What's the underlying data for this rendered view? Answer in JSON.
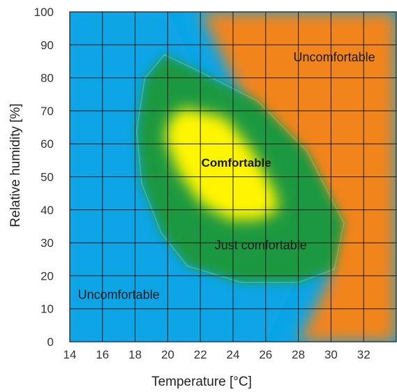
{
  "chart_data": {
    "type": "heatmap",
    "title": "",
    "xlabel": "Temperature [°C]",
    "ylabel": "Relative humidity [%]",
    "xlim": [
      14,
      34
    ],
    "ylim": [
      0,
      100
    ],
    "x_ticks": [
      14,
      16,
      18,
      20,
      22,
      24,
      26,
      28,
      30,
      32
    ],
    "y_ticks": [
      0,
      10,
      20,
      30,
      40,
      50,
      60,
      70,
      80,
      90,
      100
    ],
    "grid": true,
    "zones": [
      {
        "label": "Uncomfortable",
        "region": "cold",
        "color": "#0aa5e6",
        "boundary": [
          [
            14,
            0
          ],
          [
            26,
            0
          ],
          [
            28,
            20
          ],
          [
            20,
            100
          ],
          [
            14,
            100
          ]
        ]
      },
      {
        "label": "Uncomfortable",
        "region": "hot",
        "color": "#f2841e",
        "boundary": [
          [
            28,
            0
          ],
          [
            34,
            0
          ],
          [
            34,
            100
          ],
          [
            22,
            100
          ],
          [
            30,
            20
          ]
        ]
      },
      {
        "label": "Just comfortable",
        "color": "#1a9940",
        "boundary": [
          [
            19.8,
            87
          ],
          [
            21.5,
            83
          ],
          [
            25.5,
            73
          ],
          [
            28.5,
            58
          ],
          [
            30.8,
            36
          ],
          [
            30.2,
            22
          ],
          [
            28,
            18
          ],
          [
            24.5,
            18
          ],
          [
            21.2,
            23
          ],
          [
            19.6,
            33
          ],
          [
            18.4,
            48
          ],
          [
            18.1,
            64
          ],
          [
            18.6,
            80
          ]
        ]
      },
      {
        "label": "Comfortable",
        "color": "#fff500",
        "boundary": [
          [
            20.2,
            68
          ],
          [
            21,
            71
          ],
          [
            23.5,
            68
          ],
          [
            25.2,
            58
          ],
          [
            26.6,
            45
          ],
          [
            26.8,
            40
          ],
          [
            25.6,
            37
          ],
          [
            23.8,
            37
          ],
          [
            22,
            42
          ],
          [
            20.6,
            52
          ],
          [
            19.8,
            62
          ]
        ]
      }
    ],
    "annotations": [
      {
        "text": "Uncomfortable",
        "x": 30.2,
        "y": 86,
        "bold": false
      },
      {
        "text": "Comfortable",
        "x": 24.2,
        "y": 54,
        "bold": true
      },
      {
        "text": "Just comfortable",
        "x": 25.7,
        "y": 29,
        "bold": false
      },
      {
        "text": "Uncomfortable",
        "x": 17,
        "y": 14,
        "bold": false
      }
    ]
  }
}
